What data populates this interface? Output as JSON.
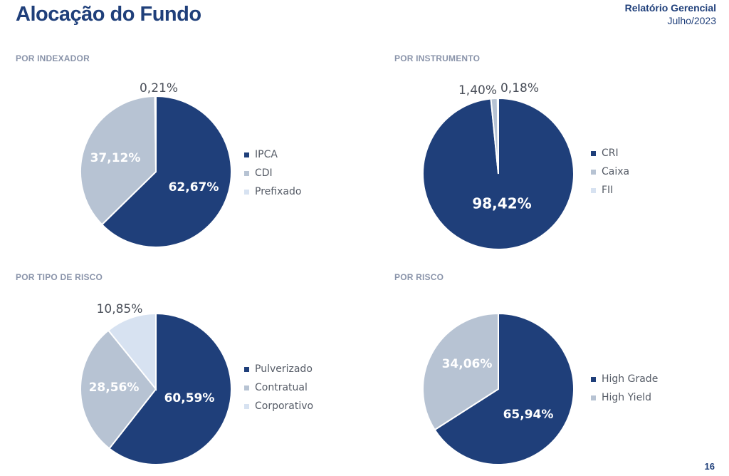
{
  "header": {
    "title": "Alocação do Fundo",
    "report_title": "Relatório Gerencial",
    "report_date": "Julho/2023"
  },
  "page_number": "16",
  "colors": {
    "dark": "#1f3f7a",
    "mid": "#b7c3d3",
    "light": "#d7e2f1",
    "tiny": "#e8eef6"
  },
  "chart_data": [
    {
      "type": "pie",
      "title": "POR INDEXADOR",
      "categories": [
        "IPCA",
        "CDI",
        "Prefixado"
      ],
      "values": [
        62.67,
        37.12,
        0.21
      ],
      "labels": [
        "62,67%",
        "37,12%",
        "0,21%"
      ],
      "colors": [
        "#1f3f7a",
        "#b7c3d3",
        "#d7e2f1"
      ],
      "legend": "right"
    },
    {
      "type": "pie",
      "title": "POR INSTRUMENTO",
      "categories": [
        "CRI",
        "Caixa",
        "FII"
      ],
      "values": [
        98.42,
        1.4,
        0.18
      ],
      "labels": [
        "98,42%",
        "1,40%",
        "0,18%"
      ],
      "colors": [
        "#1f3f7a",
        "#b7c3d3",
        "#d7e2f1"
      ],
      "legend": "right"
    },
    {
      "type": "pie",
      "title": "POR TIPO DE RISCO",
      "categories": [
        "Pulverizado",
        "Contratual",
        "Corporativo"
      ],
      "values": [
        60.59,
        28.56,
        10.85
      ],
      "labels": [
        "60,59%",
        "28,56%",
        "10,85%"
      ],
      "colors": [
        "#1f3f7a",
        "#b7c3d3",
        "#d7e2f1"
      ],
      "legend": "right"
    },
    {
      "type": "pie",
      "title": "POR RISCO",
      "categories": [
        "High Grade",
        "High Yield"
      ],
      "values": [
        65.94,
        34.06
      ],
      "labels": [
        "65,94%",
        "34,06%"
      ],
      "colors": [
        "#1f3f7a",
        "#b7c3d3"
      ],
      "legend": "right"
    }
  ]
}
